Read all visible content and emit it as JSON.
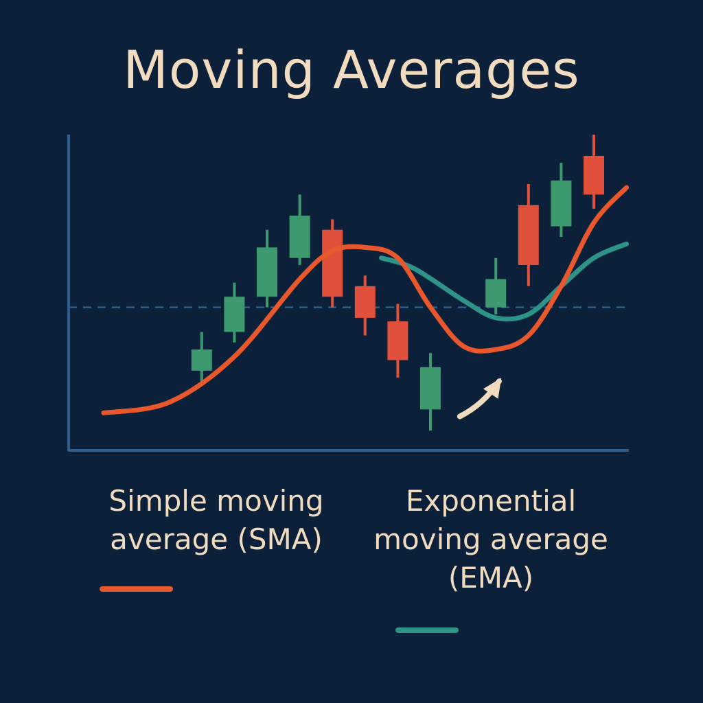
{
  "title": "Moving Averages",
  "colors": {
    "background": "#0c2039",
    "title": "#f2dcc0",
    "text": "#f2dcc0",
    "axis": "#2f5f8c",
    "up_candle": "#3d9a6e",
    "down_candle": "#e0503a",
    "sma": "#e8582c",
    "ema": "#2f9488",
    "arrow": "#f2dcc0"
  },
  "legend": {
    "sma_label": "Simple moving\naverage (SMA)",
    "ema_label": "Exponential\nmoving average\n(EMA)"
  },
  "chart_data": {
    "type": "candlestick",
    "title": "Moving Averages",
    "xlabel": "",
    "ylabel": "",
    "ylim": [
      0,
      100
    ],
    "grid": false,
    "legend_position": "bottom",
    "candles": [
      {
        "x": 4,
        "dir": "up",
        "open": 26,
        "close": 32,
        "high": 37,
        "low": 22
      },
      {
        "x": 5,
        "dir": "up",
        "open": 37,
        "close": 47,
        "high": 51,
        "low": 34
      },
      {
        "x": 6,
        "dir": "up",
        "open": 47,
        "close": 61,
        "high": 66,
        "low": 44
      },
      {
        "x": 7,
        "dir": "up",
        "open": 58,
        "close": 70,
        "high": 76,
        "low": 56
      },
      {
        "x": 8,
        "dir": "down",
        "open": 66,
        "close": 47,
        "high": 69,
        "low": 44
      },
      {
        "x": 9,
        "dir": "down",
        "open": 50,
        "close": 41,
        "high": 53,
        "low": 36
      },
      {
        "x": 10,
        "dir": "down",
        "open": 40,
        "close": 29,
        "high": 45,
        "low": 24
      },
      {
        "x": 11,
        "dir": "up",
        "open": 15,
        "close": 27,
        "high": 31,
        "low": 9
      },
      {
        "x": 13,
        "dir": "up",
        "open": 44,
        "close": 52,
        "high": 58,
        "low": 42
      },
      {
        "x": 14,
        "dir": "down",
        "open": 73,
        "close": 56,
        "high": 79,
        "low": 50
      },
      {
        "x": 15,
        "dir": "up",
        "open": 67,
        "close": 80,
        "high": 85,
        "low": 64
      },
      {
        "x": 16,
        "dir": "down",
        "open": 87,
        "close": 76,
        "high": 93,
        "low": 72
      }
    ],
    "series": [
      {
        "name": "Simple moving average (SMA)",
        "color": "#e8582c",
        "points": [
          [
            1,
            14
          ],
          [
            3,
            17
          ],
          [
            5,
            30
          ],
          [
            7,
            52
          ],
          [
            8,
            60
          ],
          [
            9,
            61
          ],
          [
            10,
            58
          ],
          [
            11,
            44
          ],
          [
            12,
            33
          ],
          [
            13,
            32
          ],
          [
            14,
            36
          ],
          [
            15,
            50
          ],
          [
            16,
            68
          ],
          [
            17,
            78
          ]
        ]
      },
      {
        "name": "Exponential moving average (EMA)",
        "color": "#2f9488",
        "points": [
          [
            9.5,
            58
          ],
          [
            10.5,
            55
          ],
          [
            12,
            46
          ],
          [
            13,
            41
          ],
          [
            14,
            42
          ],
          [
            15,
            50
          ],
          [
            16,
            58
          ],
          [
            17,
            62
          ]
        ]
      }
    ],
    "reference_lines": [
      {
        "axis": "y",
        "value": 44,
        "style": "dashed"
      }
    ],
    "annotations": [
      {
        "type": "arrow",
        "from": [
          11.9,
          13
        ],
        "to": [
          13.1,
          23
        ]
      }
    ]
  }
}
